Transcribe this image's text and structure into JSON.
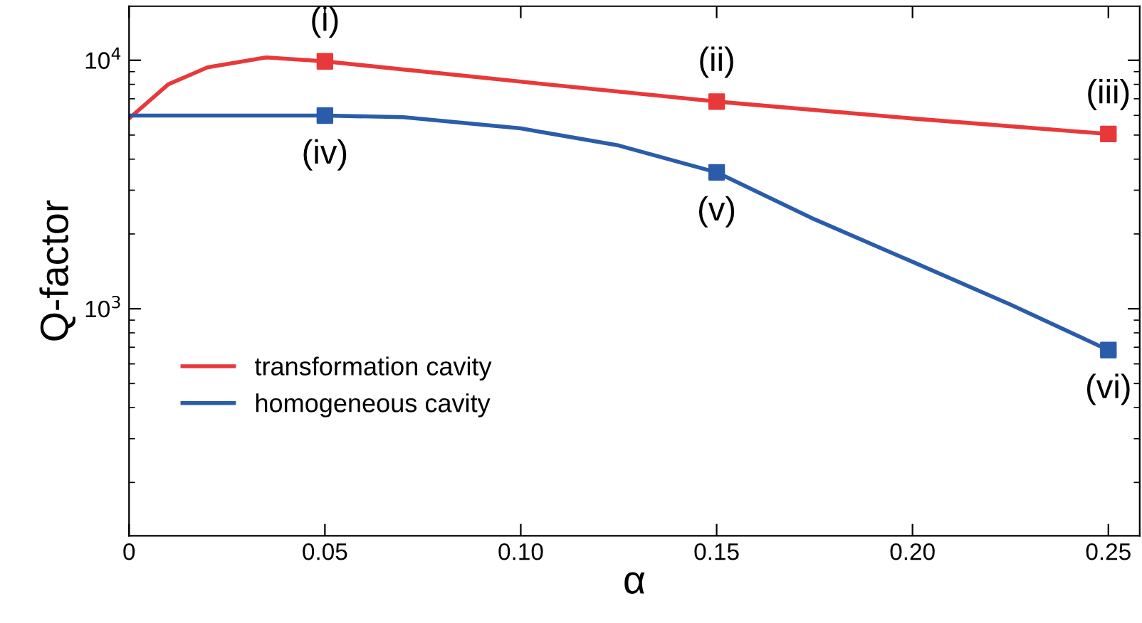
{
  "chart_data": {
    "type": "line",
    "xlabel": "α",
    "ylabel": "Q-factor",
    "log": "y",
    "legend": "lower left",
    "line_style": "solid",
    "xlim": [
      0,
      0.258
    ],
    "ylim": [
      122,
      16500
    ],
    "xticks": [
      {
        "value": 0,
        "label": "0"
      },
      {
        "value": 0.05,
        "label": "0.05"
      },
      {
        "value": 0.1,
        "label": "0.10"
      },
      {
        "value": 0.15,
        "label": "0.15"
      },
      {
        "value": 0.2,
        "label": "0.20"
      },
      {
        "value": 0.25,
        "label": "0.25"
      }
    ],
    "yticks": [
      {
        "value": 1000,
        "label": "10$^{3}$"
      },
      {
        "value": 10000,
        "label": "10$^{4}$"
      }
    ],
    "series": [
      {
        "name": "transformation cavity",
        "color": "#e8393a",
        "x": [
          0,
          0.01,
          0.02,
          0.035,
          0.05,
          0.1,
          0.15,
          0.2,
          0.25
        ],
        "values": [
          5830,
          8000,
          9360,
          10270,
          9900,
          8200,
          6820,
          5830,
          5050
        ]
      },
      {
        "name": "homogeneous cavity",
        "color": "#2a5caa",
        "x": [
          0,
          0.05,
          0.07,
          0.1,
          0.125,
          0.15,
          0.175,
          0.2,
          0.225,
          0.25
        ],
        "values": [
          5990,
          5990,
          5900,
          5320,
          4540,
          3540,
          2290,
          1545,
          1040,
          682
        ]
      },
      {
        "type": "scatter",
        "marker": "square",
        "color": "#e8393a",
        "x": [
          0.05,
          0.15,
          0.25
        ],
        "values": [
          9900,
          6820,
          5050
        ]
      },
      {
        "type": "scatter",
        "marker": "square",
        "color": "#2a5caa",
        "x": [
          0.05,
          0.15,
          0.25
        ],
        "values": [
          5990,
          3540,
          682
        ]
      }
    ],
    "annotations": [
      {
        "text": "(i)",
        "x": 0.05,
        "y": 9900
      },
      {
        "text": "(ii)",
        "x": 0.15,
        "y": 6820
      },
      {
        "text": "(iii)",
        "x": 0.25,
        "y": 5050
      },
      {
        "text": "(iv)",
        "x": 0.05,
        "y": 5990
      },
      {
        "text": "(v)",
        "x": 0.15,
        "y": 3540
      },
      {
        "text": "(vi)",
        "x": 0.25,
        "y": 682
      }
    ]
  }
}
